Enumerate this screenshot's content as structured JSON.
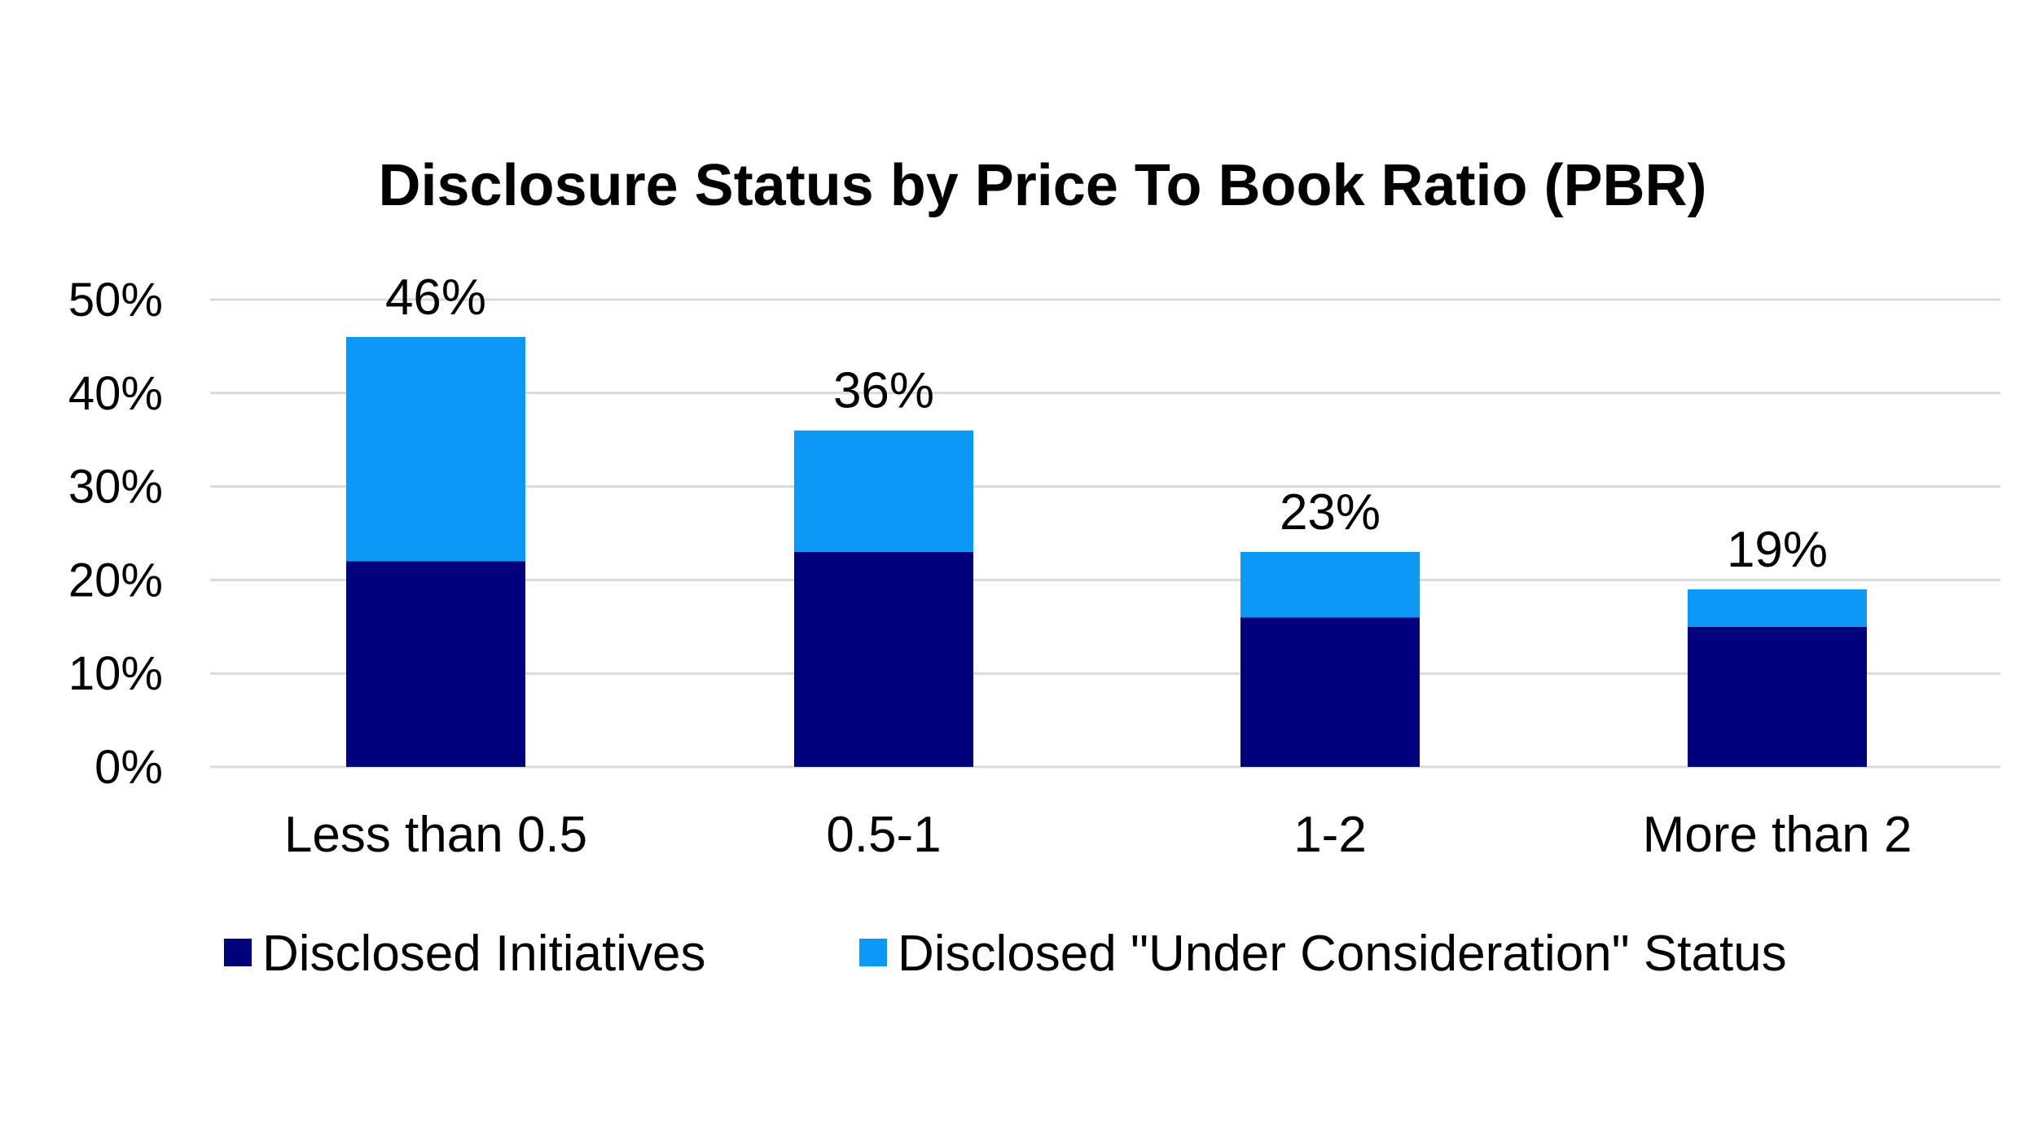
{
  "chart_data": {
    "type": "bar",
    "stacked": true,
    "title": "Disclosure Status by Price To Book Ratio (PBR)",
    "xlabel": "",
    "ylabel": "",
    "categories": [
      "Less than 0.5",
      "0.5-1",
      "1-2",
      "More than 2"
    ],
    "series": [
      {
        "name": "Disclosed Initiatives",
        "values": [
          22,
          23,
          16,
          15
        ],
        "color": "#00007A"
      },
      {
        "name": "Disclosed \"Under Consideration\" Status",
        "values": [
          24,
          13,
          7,
          4
        ],
        "color": "#0B99F5"
      }
    ],
    "totals": [
      46,
      36,
      23,
      19
    ],
    "total_labels": [
      "46%",
      "36%",
      "23%",
      "19%"
    ],
    "ylim": [
      0,
      50
    ],
    "yticks": [
      0,
      10,
      20,
      30,
      40,
      50
    ],
    "ytick_labels": [
      "0%",
      "10%",
      "20%",
      "30%",
      "40%",
      "50%"
    ],
    "grid": true,
    "grid_color": "#D9D9D9",
    "legend_position": "bottom"
  }
}
